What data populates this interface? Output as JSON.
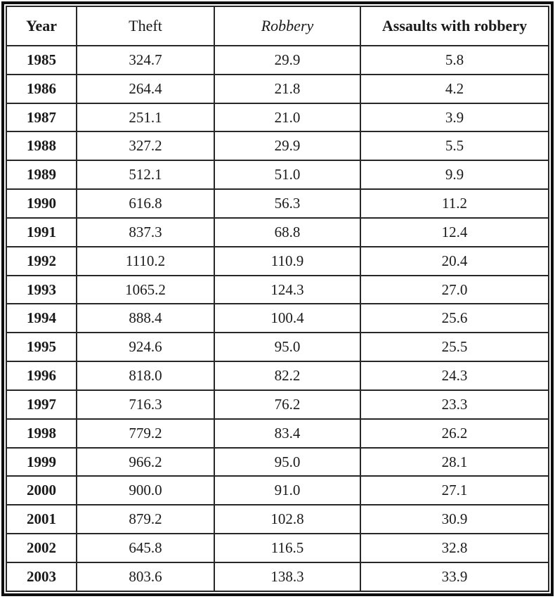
{
  "table": {
    "columns": [
      {
        "label": "Year"
      },
      {
        "label": "Theft"
      },
      {
        "label": "Robbery"
      },
      {
        "label": "Assaults with robbery"
      }
    ],
    "rows": [
      {
        "year": "1985",
        "theft": "324.7",
        "robbery": "29.9",
        "assaults": "5.8"
      },
      {
        "year": "1986",
        "theft": "264.4",
        "robbery": "21.8",
        "assaults": "4.2"
      },
      {
        "year": "1987",
        "theft": "251.1",
        "robbery": "21.0",
        "assaults": "3.9"
      },
      {
        "year": "1988",
        "theft": "327.2",
        "robbery": "29.9",
        "assaults": "5.5"
      },
      {
        "year": "1989",
        "theft": "512.1",
        "robbery": "51.0",
        "assaults": "9.9"
      },
      {
        "year": "1990",
        "theft": "616.8",
        "robbery": "56.3",
        "assaults": "11.2"
      },
      {
        "year": "1991",
        "theft": "837.3",
        "robbery": "68.8",
        "assaults": "12.4"
      },
      {
        "year": "1992",
        "theft": "1110.2",
        "robbery": "110.9",
        "assaults": "20.4"
      },
      {
        "year": "1993",
        "theft": "1065.2",
        "robbery": "124.3",
        "assaults": "27.0"
      },
      {
        "year": "1994",
        "theft": "888.4",
        "robbery": "100.4",
        "assaults": "25.6"
      },
      {
        "year": "1995",
        "theft": "924.6",
        "robbery": "95.0",
        "assaults": "25.5"
      },
      {
        "year": "1996",
        "theft": "818.0",
        "robbery": "82.2",
        "assaults": "24.3"
      },
      {
        "year": "1997",
        "theft": "716.3",
        "robbery": "76.2",
        "assaults": "23.3"
      },
      {
        "year": "1998",
        "theft": "779.2",
        "robbery": "83.4",
        "assaults": "26.2"
      },
      {
        "year": "1999",
        "theft": "966.2",
        "robbery": "95.0",
        "assaults": "28.1"
      },
      {
        "year": "2000",
        "theft": "900.0",
        "robbery": "91.0",
        "assaults": "27.1"
      },
      {
        "year": "2001",
        "theft": "879.2",
        "robbery": "102.8",
        "assaults": "30.9"
      },
      {
        "year": "2002",
        "theft": "645.8",
        "robbery": "116.5",
        "assaults": "32.8"
      },
      {
        "year": "2003",
        "theft": "803.6",
        "robbery": "138.3",
        "assaults": "33.9"
      }
    ]
  },
  "chart_data": {
    "type": "table",
    "categories": [
      "1985",
      "1986",
      "1987",
      "1988",
      "1989",
      "1990",
      "1991",
      "1992",
      "1993",
      "1994",
      "1995",
      "1996",
      "1997",
      "1998",
      "1999",
      "2000",
      "2001",
      "2002",
      "2003"
    ],
    "series": [
      {
        "name": "Theft",
        "values": [
          324.7,
          264.4,
          251.1,
          327.2,
          512.1,
          616.8,
          837.3,
          1110.2,
          1065.2,
          888.4,
          924.6,
          818.0,
          716.3,
          779.2,
          966.2,
          900.0,
          879.2,
          645.8,
          803.6
        ]
      },
      {
        "name": "Robbery",
        "values": [
          29.9,
          21.8,
          21.0,
          29.9,
          51.0,
          56.3,
          68.8,
          110.9,
          124.3,
          100.4,
          95.0,
          82.2,
          76.2,
          83.4,
          95.0,
          91.0,
          102.8,
          116.5,
          138.3
        ]
      },
      {
        "name": "Assaults with robbery",
        "values": [
          5.8,
          4.2,
          3.9,
          5.5,
          9.9,
          11.2,
          12.4,
          20.4,
          27.0,
          25.6,
          25.5,
          24.3,
          23.3,
          26.2,
          28.1,
          27.1,
          30.9,
          32.8,
          33.9
        ]
      }
    ],
    "title": "",
    "xlabel": "Year",
    "ylabel": "",
    "legend_position": "none",
    "grid": true
  },
  "colors": {
    "border_outer": "#0e0e0e",
    "border_inner": "#272727",
    "text": "#1a1a1a",
    "background": "#ffffff"
  }
}
